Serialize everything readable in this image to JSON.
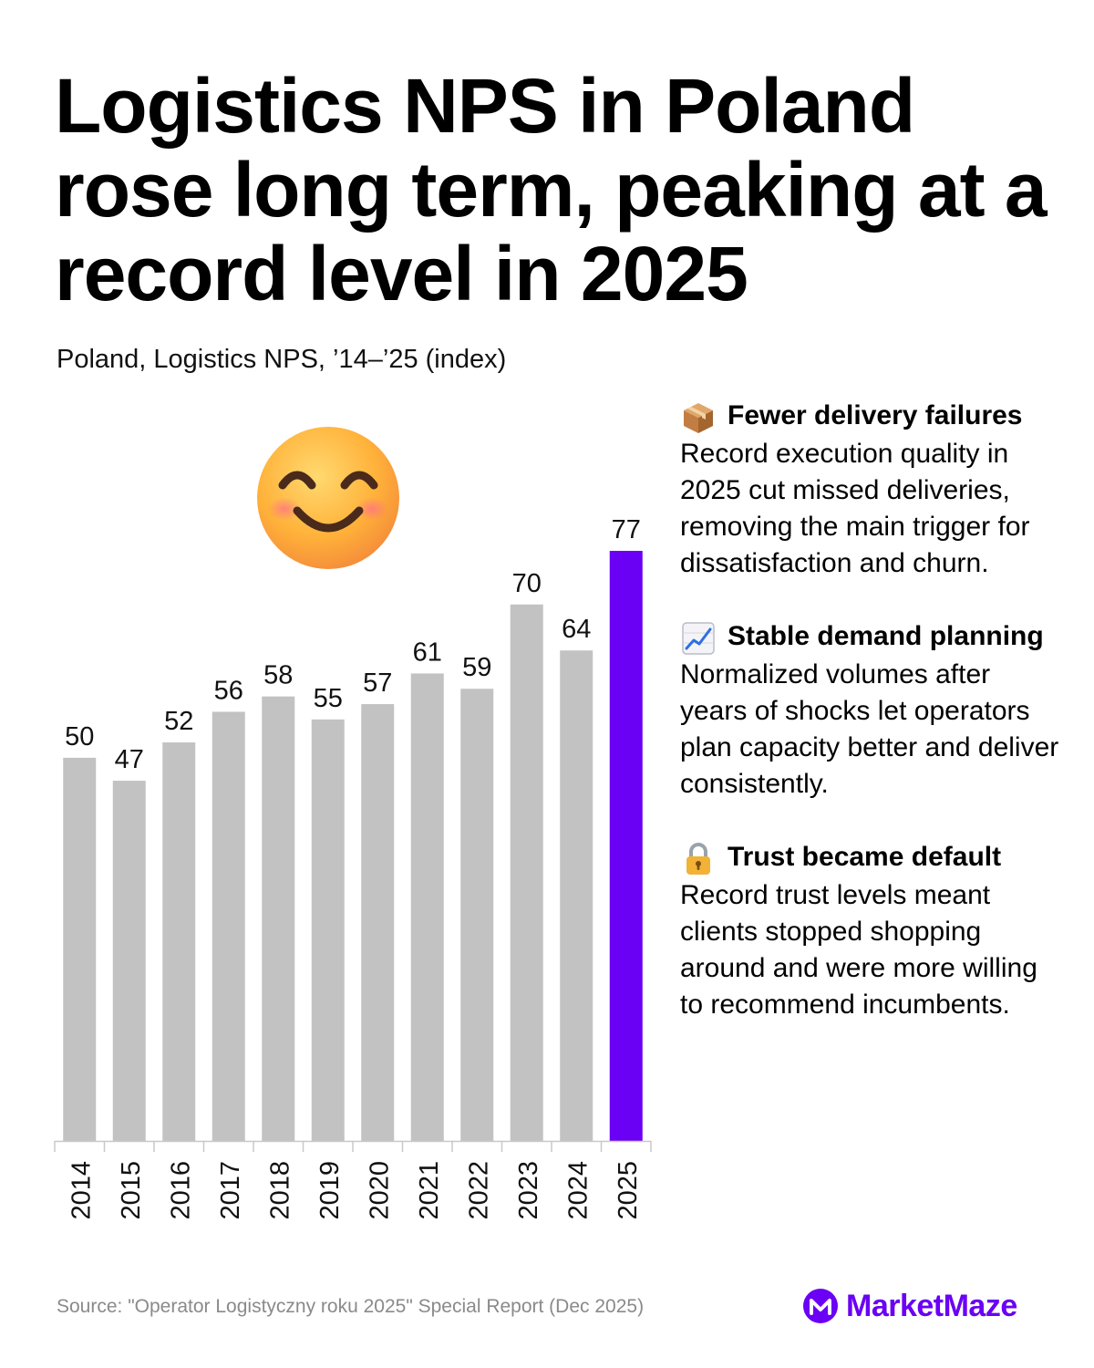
{
  "title": "Logistics NPS in Poland rose long term, peaking at a record level in 2025",
  "subtitle": "Poland, Logistics NPS, ’14–’25 (index)",
  "colors": {
    "bar": "#c2c2c2",
    "highlight": "#6a00f4",
    "accent": "#6a00f4"
  },
  "chart_data": {
    "type": "bar",
    "title": "Poland, Logistics NPS, ’14–’25 (index)",
    "categories": [
      "2014",
      "2015",
      "2016",
      "2017",
      "2018",
      "2019",
      "2020",
      "2021",
      "2022",
      "2023",
      "2024",
      "2025"
    ],
    "values": [
      50,
      47,
      52,
      56,
      58,
      55,
      57,
      61,
      59,
      70,
      64,
      77
    ],
    "highlight_category": "2025",
    "xlabel": "",
    "ylabel": "",
    "ylim": [
      0,
      77
    ]
  },
  "points": [
    {
      "icon": "package-icon",
      "heading": "Fewer delivery failures",
      "body": "Record execution quality in 2025 cut missed deliveries, removing the main trigger for dissatisfaction and churn."
    },
    {
      "icon": "chart-increasing-icon",
      "heading": "Stable demand planning",
      "body": "Normalized volumes after years of shocks let operators plan capacity better and deliver consistently."
    },
    {
      "icon": "lock-icon",
      "heading": "Trust became default",
      "body": "Record trust levels meant clients stopped shopping around and were more willing to recommend incumbents."
    }
  ],
  "source": "Source: \"Operator Logistyczny roku 2025\" Special Report (Dec 2025)",
  "brand": "MarketMaze"
}
